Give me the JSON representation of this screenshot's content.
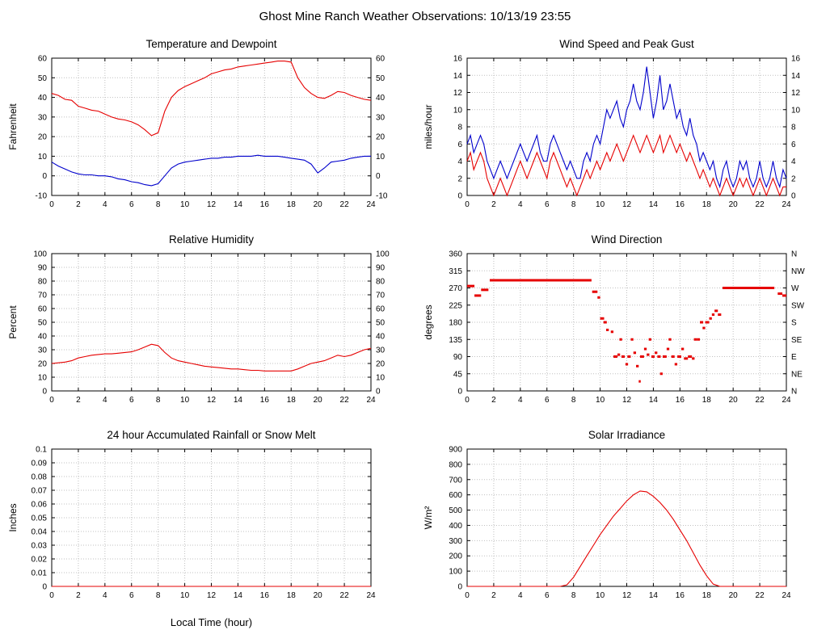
{
  "page_title": "Ghost Mine Ranch Weather Observations: 10/13/19 23:55",
  "colors": {
    "red": "#e60000",
    "blue": "#0000cc",
    "grid": "#c0c0c0",
    "axis": "#000000"
  },
  "chart_data": [
    {
      "type": "line",
      "title": "Temperature and Dewpoint",
      "ylabel": "Fahrenheit",
      "xlim": [
        0,
        24
      ],
      "xtick_step": 2,
      "ylim": [
        -10,
        60
      ],
      "ytick_step": 10,
      "right_axis": "mirror",
      "series": [
        {
          "name": "temperature",
          "color": "#e60000",
          "t0": 0,
          "dt": 0.5,
          "values": [
            42,
            41,
            39,
            38.5,
            35.5,
            34.5,
            33.5,
            33,
            31.5,
            30,
            29,
            28.5,
            27.5,
            26,
            23.5,
            20.5,
            22,
            33,
            40,
            43.5,
            45.5,
            47,
            48.5,
            50,
            52,
            53,
            54,
            54.5,
            55.5,
            56,
            56.5,
            57,
            57.5,
            58,
            58.5,
            58.5,
            58,
            50,
            45,
            42,
            40,
            39.5,
            41,
            43,
            42.5,
            41,
            40,
            39,
            38.5
          ]
        },
        {
          "name": "dewpoint",
          "color": "#0000cc",
          "t0": 0,
          "dt": 0.5,
          "values": [
            7,
            5,
            3.5,
            2,
            1,
            0.5,
            0.5,
            0,
            0,
            -0.5,
            -1.5,
            -2,
            -3,
            -3.5,
            -4.5,
            -5,
            -4,
            0,
            4,
            6,
            7,
            7.5,
            8,
            8.5,
            9,
            9,
            9.5,
            9.5,
            10,
            10,
            10,
            10.5,
            10,
            10,
            10,
            9.5,
            9,
            8.5,
            8,
            6,
            1.5,
            4,
            7,
            7.5,
            8,
            9,
            9.5,
            10,
            10
          ]
        }
      ]
    },
    {
      "type": "line",
      "title": "Wind Speed and Peak Gust",
      "ylabel": "miles/hour",
      "xlim": [
        0,
        24
      ],
      "xtick_step": 2,
      "ylim": [
        0,
        16
      ],
      "ytick_step": 2,
      "right_axis": "mirror",
      "series": [
        {
          "name": "peak-gust",
          "color": "#0000cc",
          "t0": 0,
          "dt": 0.25,
          "values": [
            6,
            7,
            5,
            6,
            7,
            6,
            4,
            3,
            2,
            3,
            4,
            3,
            2,
            3,
            4,
            5,
            6,
            5,
            4,
            5,
            6,
            7,
            5,
            4,
            4,
            6,
            7,
            6,
            5,
            4,
            3,
            4,
            3,
            2,
            2,
            4,
            5,
            4,
            6,
            7,
            6,
            8,
            10,
            9,
            10,
            11,
            9,
            8,
            10,
            11,
            13,
            11,
            10,
            12,
            15,
            12,
            9,
            11,
            14,
            10,
            11,
            13,
            11,
            9,
            10,
            8,
            7,
            9,
            7,
            6,
            4,
            5,
            4,
            3,
            4,
            2,
            1,
            3,
            4,
            2,
            1,
            2,
            4,
            3,
            4,
            2,
            1,
            2,
            4,
            2,
            1,
            2,
            4,
            2,
            1,
            3,
            2
          ]
        },
        {
          "name": "wind-speed",
          "color": "#e60000",
          "t0": 0,
          "dt": 0.25,
          "values": [
            4,
            5,
            3,
            4,
            5,
            4,
            2,
            1,
            0,
            1,
            2,
            1,
            0,
            1,
            2,
            3,
            4,
            3,
            2,
            3,
            4,
            5,
            4,
            3,
            2,
            4,
            5,
            4,
            3,
            2,
            1,
            2,
            1,
            0,
            1,
            2,
            3,
            2,
            3,
            4,
            3,
            4,
            5,
            4,
            5,
            6,
            5,
            4,
            5,
            6,
            7,
            6,
            5,
            6,
            7,
            6,
            5,
            6,
            7,
            5,
            6,
            7,
            6,
            5,
            6,
            5,
            4,
            5,
            4,
            3,
            2,
            3,
            2,
            1,
            2,
            1,
            0,
            1,
            2,
            1,
            0,
            1,
            2,
            1,
            2,
            1,
            0,
            1,
            2,
            1,
            0,
            1,
            2,
            1,
            0,
            1,
            1
          ]
        }
      ]
    },
    {
      "type": "line",
      "title": "Relative Humidity",
      "ylabel": "Percent",
      "xlim": [
        0,
        24
      ],
      "xtick_step": 2,
      "ylim": [
        0,
        100
      ],
      "ytick_step": 10,
      "right_axis": "mirror",
      "series": [
        {
          "name": "relative-humidity",
          "color": "#e60000",
          "t0": 0,
          "dt": 0.5,
          "values": [
            20,
            20.5,
            21,
            22,
            24,
            25,
            26,
            26.5,
            27,
            27,
            27.5,
            28,
            28.5,
            30,
            32,
            34,
            33,
            28,
            24,
            22,
            21,
            20,
            19,
            18,
            17.5,
            17,
            16.5,
            16,
            16,
            15.5,
            15,
            15,
            14.5,
            14.5,
            14.5,
            14.5,
            14.5,
            16,
            18,
            20,
            21,
            22,
            24,
            26,
            25,
            26,
            28,
            30,
            31
          ]
        }
      ]
    },
    {
      "type": "segments",
      "title": "Wind Direction",
      "ylabel": "degrees",
      "xlim": [
        0,
        24
      ],
      "xtick_step": 2,
      "ylim": [
        0,
        360
      ],
      "ytick_step": 45,
      "right_axis": "compass",
      "compass_labels": [
        "N",
        "NW",
        "W",
        "SW",
        "S",
        "SE",
        "E",
        "NE",
        "N"
      ],
      "series": [
        {
          "name": "wind-direction",
          "color": "#e60000",
          "segments": [
            [
              0,
              0.55,
              275
            ],
            [
              0.55,
              1.05,
              250
            ],
            [
              1.05,
              1.6,
              265
            ],
            [
              1.7,
              9.35,
              290
            ],
            [
              9.4,
              9.8,
              260
            ],
            [
              9.8,
              10,
              245
            ],
            [
              10,
              10.3,
              190
            ],
            [
              10.25,
              10.5,
              180
            ],
            [
              10.45,
              10.65,
              160
            ],
            [
              10.8,
              11,
              155
            ],
            [
              11,
              11.3,
              90
            ],
            [
              11.3,
              11.5,
              95
            ],
            [
              11.45,
              11.65,
              135
            ],
            [
              11.6,
              11.85,
              90
            ],
            [
              11.9,
              12.1,
              70
            ],
            [
              12.05,
              12.3,
              90
            ],
            [
              12.3,
              12.5,
              135
            ],
            [
              12.5,
              12.7,
              100
            ],
            [
              12.7,
              12.9,
              65
            ],
            [
              12.9,
              13.05,
              25
            ],
            [
              13,
              13.3,
              90
            ],
            [
              13.3,
              13.5,
              110
            ],
            [
              13.5,
              13.7,
              95
            ],
            [
              13.65,
              13.85,
              135
            ],
            [
              13.85,
              14.1,
              90
            ],
            [
              14.1,
              14.3,
              100
            ],
            [
              14.3,
              14.55,
              90
            ],
            [
              14.5,
              14.7,
              45
            ],
            [
              14.7,
              15,
              90
            ],
            [
              15,
              15.2,
              110
            ],
            [
              15.15,
              15.35,
              135
            ],
            [
              15.35,
              15.6,
              90
            ],
            [
              15.6,
              15.8,
              70
            ],
            [
              15.8,
              16.1,
              90
            ],
            [
              16.1,
              16.3,
              110
            ],
            [
              16.3,
              16.6,
              85
            ],
            [
              16.6,
              16.9,
              90
            ],
            [
              16.9,
              17.1,
              85
            ],
            [
              17.05,
              17.3,
              135
            ],
            [
              17.3,
              17.5,
              135
            ],
            [
              17.5,
              17.75,
              180
            ],
            [
              17.7,
              17.9,
              165
            ],
            [
              17.9,
              18.2,
              180
            ],
            [
              18.2,
              18.4,
              190
            ],
            [
              18.4,
              18.6,
              200
            ],
            [
              18.6,
              18.85,
              210
            ],
            [
              18.85,
              19.1,
              200
            ],
            [
              19.2,
              23.1,
              270
            ],
            [
              23.35,
              23.7,
              255
            ],
            [
              23.7,
              24,
              250
            ]
          ]
        }
      ]
    },
    {
      "type": "line",
      "title": "24 hour Accumulated Rainfall or Snow Melt",
      "ylabel": "Inches",
      "xlabel": "Local Time (hour)",
      "xlim": [
        0,
        24
      ],
      "xtick_step": 2,
      "ylim": [
        0,
        0.1
      ],
      "ytick_step": 0.01,
      "right_axis": "none",
      "series": [
        {
          "name": "rainfall",
          "color": "#e60000",
          "t0": 0,
          "dt": 12,
          "values": [
            0,
            0,
            0
          ]
        }
      ]
    },
    {
      "type": "line",
      "title": "Solar Irradiance",
      "ylabel": "W/m²",
      "xlim": [
        0,
        24
      ],
      "xtick_step": 2,
      "ylim": [
        0,
        900
      ],
      "ytick_step": 100,
      "right_axis": "none",
      "series": [
        {
          "name": "solar-irradiance",
          "color": "#e60000",
          "t0": 0,
          "dt": 0.5,
          "values": [
            0,
            0,
            0,
            0,
            0,
            0,
            0,
            0,
            0,
            0,
            0,
            0,
            0,
            0,
            0,
            10,
            60,
            130,
            200,
            270,
            340,
            400,
            460,
            510,
            560,
            600,
            625,
            620,
            590,
            550,
            500,
            440,
            370,
            300,
            220,
            140,
            70,
            15,
            0,
            0,
            0,
            0,
            0,
            0,
            0,
            0,
            0,
            0,
            0
          ]
        }
      ]
    }
  ]
}
